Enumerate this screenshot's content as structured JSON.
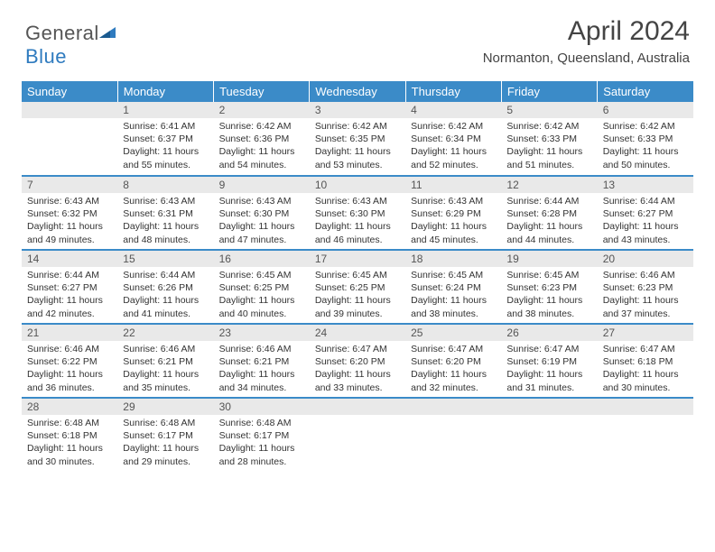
{
  "brand": {
    "name_part1": "General",
    "name_part2": "Blue"
  },
  "title": "April 2024",
  "location": "Normanton, Queensland, Australia",
  "colors": {
    "header_bg": "#3b8bc8",
    "header_text": "#ffffff",
    "daynum_bg": "#e9e9e9",
    "row_border": "#3b8bc8",
    "body_text": "#333333",
    "brand_gray": "#555555",
    "brand_blue": "#2f7bbf"
  },
  "typography": {
    "title_fontsize": 30,
    "location_fontsize": 15,
    "header_fontsize": 13,
    "daynum_fontsize": 12,
    "cell_fontsize": 10.5
  },
  "day_headers": [
    "Sunday",
    "Monday",
    "Tuesday",
    "Wednesday",
    "Thursday",
    "Friday",
    "Saturday"
  ],
  "weeks": [
    [
      null,
      {
        "n": "1",
        "sr": "6:41 AM",
        "ss": "6:37 PM",
        "dl": "11 hours and 55 minutes."
      },
      {
        "n": "2",
        "sr": "6:42 AM",
        "ss": "6:36 PM",
        "dl": "11 hours and 54 minutes."
      },
      {
        "n": "3",
        "sr": "6:42 AM",
        "ss": "6:35 PM",
        "dl": "11 hours and 53 minutes."
      },
      {
        "n": "4",
        "sr": "6:42 AM",
        "ss": "6:34 PM",
        "dl": "11 hours and 52 minutes."
      },
      {
        "n": "5",
        "sr": "6:42 AM",
        "ss": "6:33 PM",
        "dl": "11 hours and 51 minutes."
      },
      {
        "n": "6",
        "sr": "6:42 AM",
        "ss": "6:33 PM",
        "dl": "11 hours and 50 minutes."
      }
    ],
    [
      {
        "n": "7",
        "sr": "6:43 AM",
        "ss": "6:32 PM",
        "dl": "11 hours and 49 minutes."
      },
      {
        "n": "8",
        "sr": "6:43 AM",
        "ss": "6:31 PM",
        "dl": "11 hours and 48 minutes."
      },
      {
        "n": "9",
        "sr": "6:43 AM",
        "ss": "6:30 PM",
        "dl": "11 hours and 47 minutes."
      },
      {
        "n": "10",
        "sr": "6:43 AM",
        "ss": "6:30 PM",
        "dl": "11 hours and 46 minutes."
      },
      {
        "n": "11",
        "sr": "6:43 AM",
        "ss": "6:29 PM",
        "dl": "11 hours and 45 minutes."
      },
      {
        "n": "12",
        "sr": "6:44 AM",
        "ss": "6:28 PM",
        "dl": "11 hours and 44 minutes."
      },
      {
        "n": "13",
        "sr": "6:44 AM",
        "ss": "6:27 PM",
        "dl": "11 hours and 43 minutes."
      }
    ],
    [
      {
        "n": "14",
        "sr": "6:44 AM",
        "ss": "6:27 PM",
        "dl": "11 hours and 42 minutes."
      },
      {
        "n": "15",
        "sr": "6:44 AM",
        "ss": "6:26 PM",
        "dl": "11 hours and 41 minutes."
      },
      {
        "n": "16",
        "sr": "6:45 AM",
        "ss": "6:25 PM",
        "dl": "11 hours and 40 minutes."
      },
      {
        "n": "17",
        "sr": "6:45 AM",
        "ss": "6:25 PM",
        "dl": "11 hours and 39 minutes."
      },
      {
        "n": "18",
        "sr": "6:45 AM",
        "ss": "6:24 PM",
        "dl": "11 hours and 38 minutes."
      },
      {
        "n": "19",
        "sr": "6:45 AM",
        "ss": "6:23 PM",
        "dl": "11 hours and 38 minutes."
      },
      {
        "n": "20",
        "sr": "6:46 AM",
        "ss": "6:23 PM",
        "dl": "11 hours and 37 minutes."
      }
    ],
    [
      {
        "n": "21",
        "sr": "6:46 AM",
        "ss": "6:22 PM",
        "dl": "11 hours and 36 minutes."
      },
      {
        "n": "22",
        "sr": "6:46 AM",
        "ss": "6:21 PM",
        "dl": "11 hours and 35 minutes."
      },
      {
        "n": "23",
        "sr": "6:46 AM",
        "ss": "6:21 PM",
        "dl": "11 hours and 34 minutes."
      },
      {
        "n": "24",
        "sr": "6:47 AM",
        "ss": "6:20 PM",
        "dl": "11 hours and 33 minutes."
      },
      {
        "n": "25",
        "sr": "6:47 AM",
        "ss": "6:20 PM",
        "dl": "11 hours and 32 minutes."
      },
      {
        "n": "26",
        "sr": "6:47 AM",
        "ss": "6:19 PM",
        "dl": "11 hours and 31 minutes."
      },
      {
        "n": "27",
        "sr": "6:47 AM",
        "ss": "6:18 PM",
        "dl": "11 hours and 30 minutes."
      }
    ],
    [
      {
        "n": "28",
        "sr": "6:48 AM",
        "ss": "6:18 PM",
        "dl": "11 hours and 30 minutes."
      },
      {
        "n": "29",
        "sr": "6:48 AM",
        "ss": "6:17 PM",
        "dl": "11 hours and 29 minutes."
      },
      {
        "n": "30",
        "sr": "6:48 AM",
        "ss": "6:17 PM",
        "dl": "11 hours and 28 minutes."
      },
      null,
      null,
      null,
      null
    ]
  ],
  "labels": {
    "sunrise": "Sunrise:",
    "sunset": "Sunset:",
    "daylight": "Daylight:"
  }
}
